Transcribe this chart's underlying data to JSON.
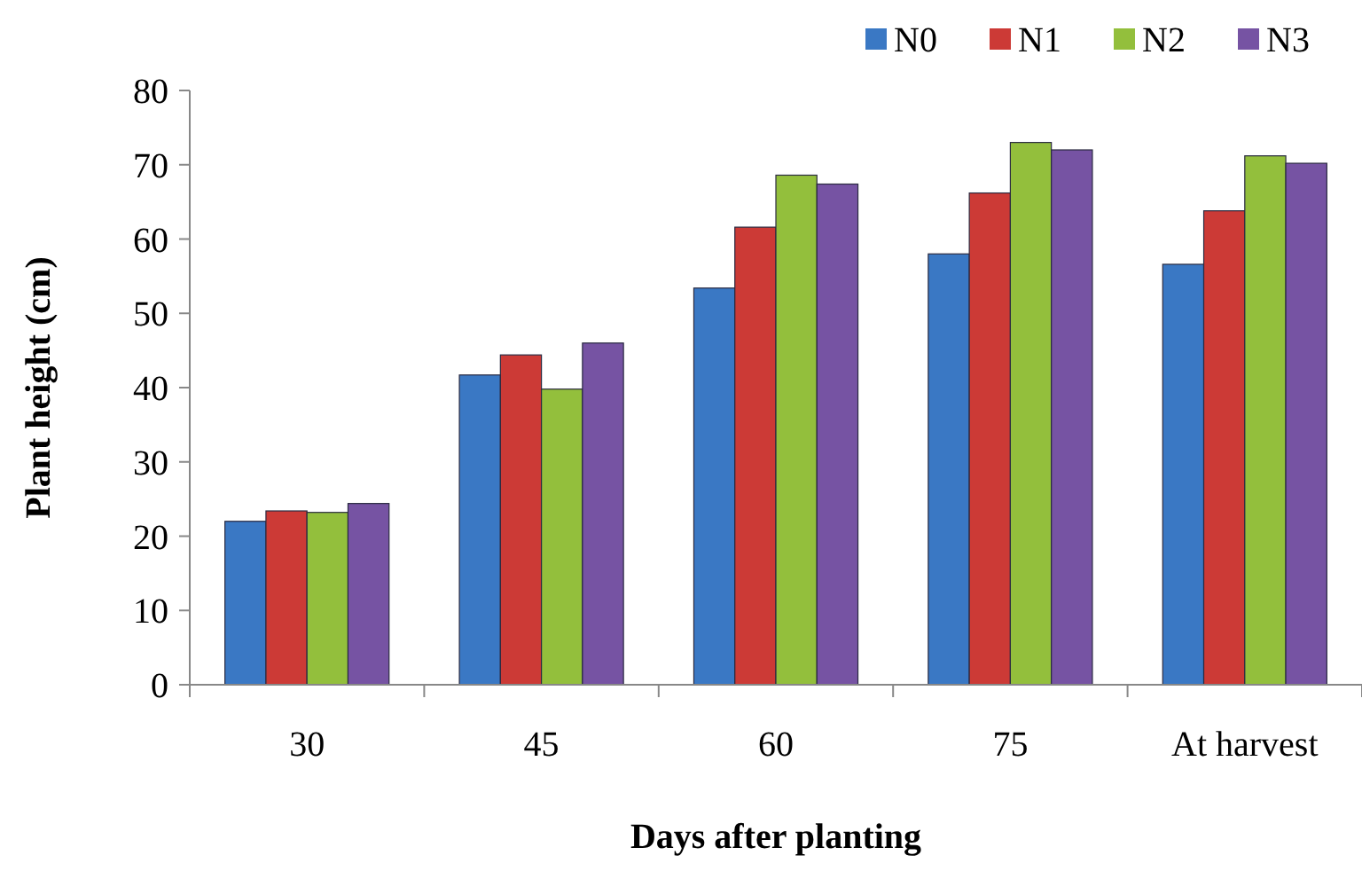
{
  "chart_data": {
    "type": "bar",
    "xlabel": "Days after planting",
    "ylabel": "Plant height (cm)",
    "categories": [
      "30",
      "45",
      "60",
      "75",
      "At harvest"
    ],
    "series": [
      {
        "name": "N0",
        "color": "#3a78c4",
        "values": [
          22.0,
          41.7,
          53.4,
          58.0,
          56.6
        ]
      },
      {
        "name": "N1",
        "color": "#cc3a36",
        "values": [
          23.4,
          44.4,
          61.6,
          66.2,
          63.8
        ]
      },
      {
        "name": "N2",
        "color": "#93bf3c",
        "values": [
          23.2,
          39.8,
          68.6,
          73.0,
          71.2
        ]
      },
      {
        "name": "N3",
        "color": "#7653a3",
        "values": [
          24.4,
          46.0,
          67.4,
          72.0,
          70.2
        ]
      }
    ],
    "ylim": [
      0,
      80
    ],
    "yticks": [
      0,
      10,
      20,
      30,
      40,
      50,
      60,
      70,
      80
    ],
    "grid": false,
    "legend": "top right"
  }
}
